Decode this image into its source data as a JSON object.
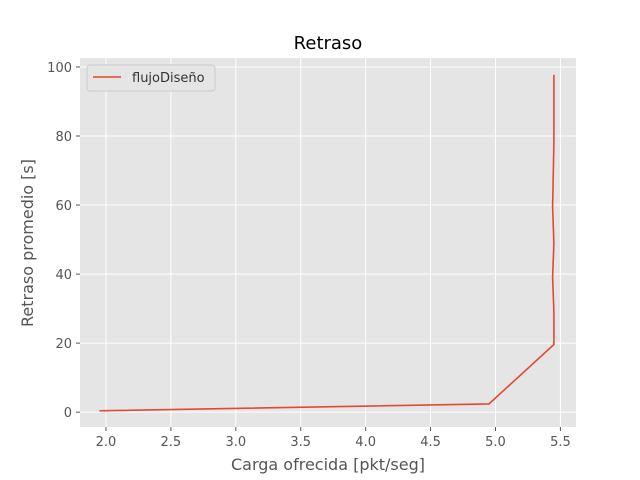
{
  "chart_data": {
    "type": "line",
    "title": "Retraso",
    "xlabel": "Carga ofrecida [pkt/seg]",
    "ylabel": "Retraso promedio [s]",
    "xlim": [
      1.8,
      5.62
    ],
    "ylim": [
      -4.3,
      102.6
    ],
    "xticks": [
      2.0,
      2.5,
      3.0,
      3.5,
      4.0,
      4.5,
      5.0,
      5.5
    ],
    "xtick_labels": [
      "2.0",
      "2.5",
      "3.0",
      "3.5",
      "4.0",
      "4.5",
      "5.0",
      "5.5"
    ],
    "yticks": [
      0,
      20,
      40,
      60,
      80,
      100
    ],
    "ytick_labels": [
      "0",
      "20",
      "40",
      "60",
      "80",
      "100"
    ],
    "grid": true,
    "legend_position": "top-left",
    "series": [
      {
        "name": "flujoDiseño",
        "color": "#E24A33",
        "x": [
          1.95,
          4.95,
          5.45,
          5.45,
          5.44,
          5.45,
          5.44,
          5.45,
          5.45
        ],
        "y": [
          0.4,
          2.4,
          19.6,
          29.0,
          39.0,
          49.0,
          59.5,
          78.0,
          97.7
        ]
      }
    ]
  }
}
